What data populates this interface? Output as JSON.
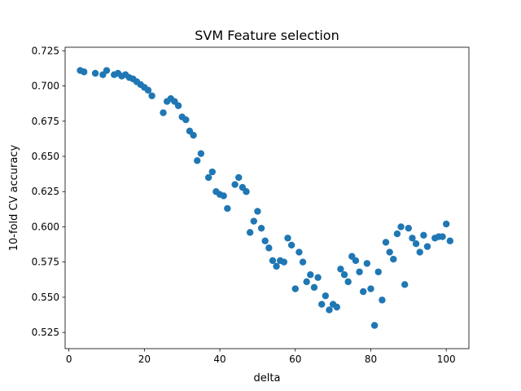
{
  "chart_data": {
    "type": "scatter",
    "title": "SVM Feature selection",
    "xlabel": "delta",
    "ylabel": "10-fold CV accuracy",
    "xlim": [
      -1.0,
      106.0
    ],
    "ylim": [
      0.5135,
      0.7275
    ],
    "grid": false,
    "legend": "none",
    "marker_color": "#1f77b4",
    "xticks": [
      0,
      20,
      40,
      60,
      80,
      100
    ],
    "xtick_labels": [
      "0",
      "20",
      "40",
      "60",
      "80",
      "100"
    ],
    "yticks": [
      0.525,
      0.55,
      0.575,
      0.6,
      0.625,
      0.65,
      0.675,
      0.7,
      0.725
    ],
    "ytick_labels": [
      "0.525",
      "0.550",
      "0.575",
      "0.600",
      "0.625",
      "0.650",
      "0.675",
      "0.700",
      "0.725"
    ],
    "series": [
      {
        "x": [
          3,
          4,
          7,
          9,
          10,
          12,
          13,
          14,
          15,
          16,
          17,
          18,
          19,
          20,
          21,
          22,
          25,
          26,
          27,
          28,
          29,
          30,
          31,
          32,
          33,
          34,
          35,
          37,
          38,
          39,
          40,
          41,
          42,
          44,
          45,
          46,
          47,
          48,
          49,
          50,
          51,
          52,
          53,
          54,
          55,
          56,
          57,
          58,
          59,
          60,
          61,
          62,
          63,
          64,
          65,
          66,
          67,
          68,
          69,
          70,
          71,
          72,
          73,
          74,
          75,
          76,
          77,
          78,
          79,
          80,
          81,
          82,
          83,
          84,
          85,
          86,
          87,
          88,
          89,
          90,
          91,
          92,
          93,
          94,
          95,
          97,
          98,
          99,
          100,
          101
        ],
        "y": [
          0.711,
          0.71,
          0.709,
          0.708,
          0.711,
          0.708,
          0.709,
          0.707,
          0.708,
          0.706,
          0.705,
          0.703,
          0.701,
          0.699,
          0.697,
          0.693,
          0.681,
          0.689,
          0.691,
          0.689,
          0.686,
          0.678,
          0.676,
          0.668,
          0.665,
          0.647,
          0.652,
          0.635,
          0.639,
          0.625,
          0.623,
          0.622,
          0.613,
          0.63,
          0.635,
          0.628,
          0.625,
          0.596,
          0.604,
          0.611,
          0.599,
          0.59,
          0.585,
          0.576,
          0.572,
          0.576,
          0.575,
          0.592,
          0.587,
          0.556,
          0.582,
          0.575,
          0.561,
          0.566,
          0.557,
          0.564,
          0.545,
          0.551,
          0.541,
          0.545,
          0.543,
          0.57,
          0.566,
          0.561,
          0.579,
          0.576,
          0.568,
          0.554,
          0.574,
          0.556,
          0.53,
          0.568,
          0.548,
          0.589,
          0.582,
          0.577,
          0.595,
          0.6,
          0.559,
          0.599,
          0.592,
          0.588,
          0.582,
          0.594,
          0.586,
          0.592,
          0.593,
          0.593,
          0.602,
          0.59
        ]
      }
    ]
  }
}
